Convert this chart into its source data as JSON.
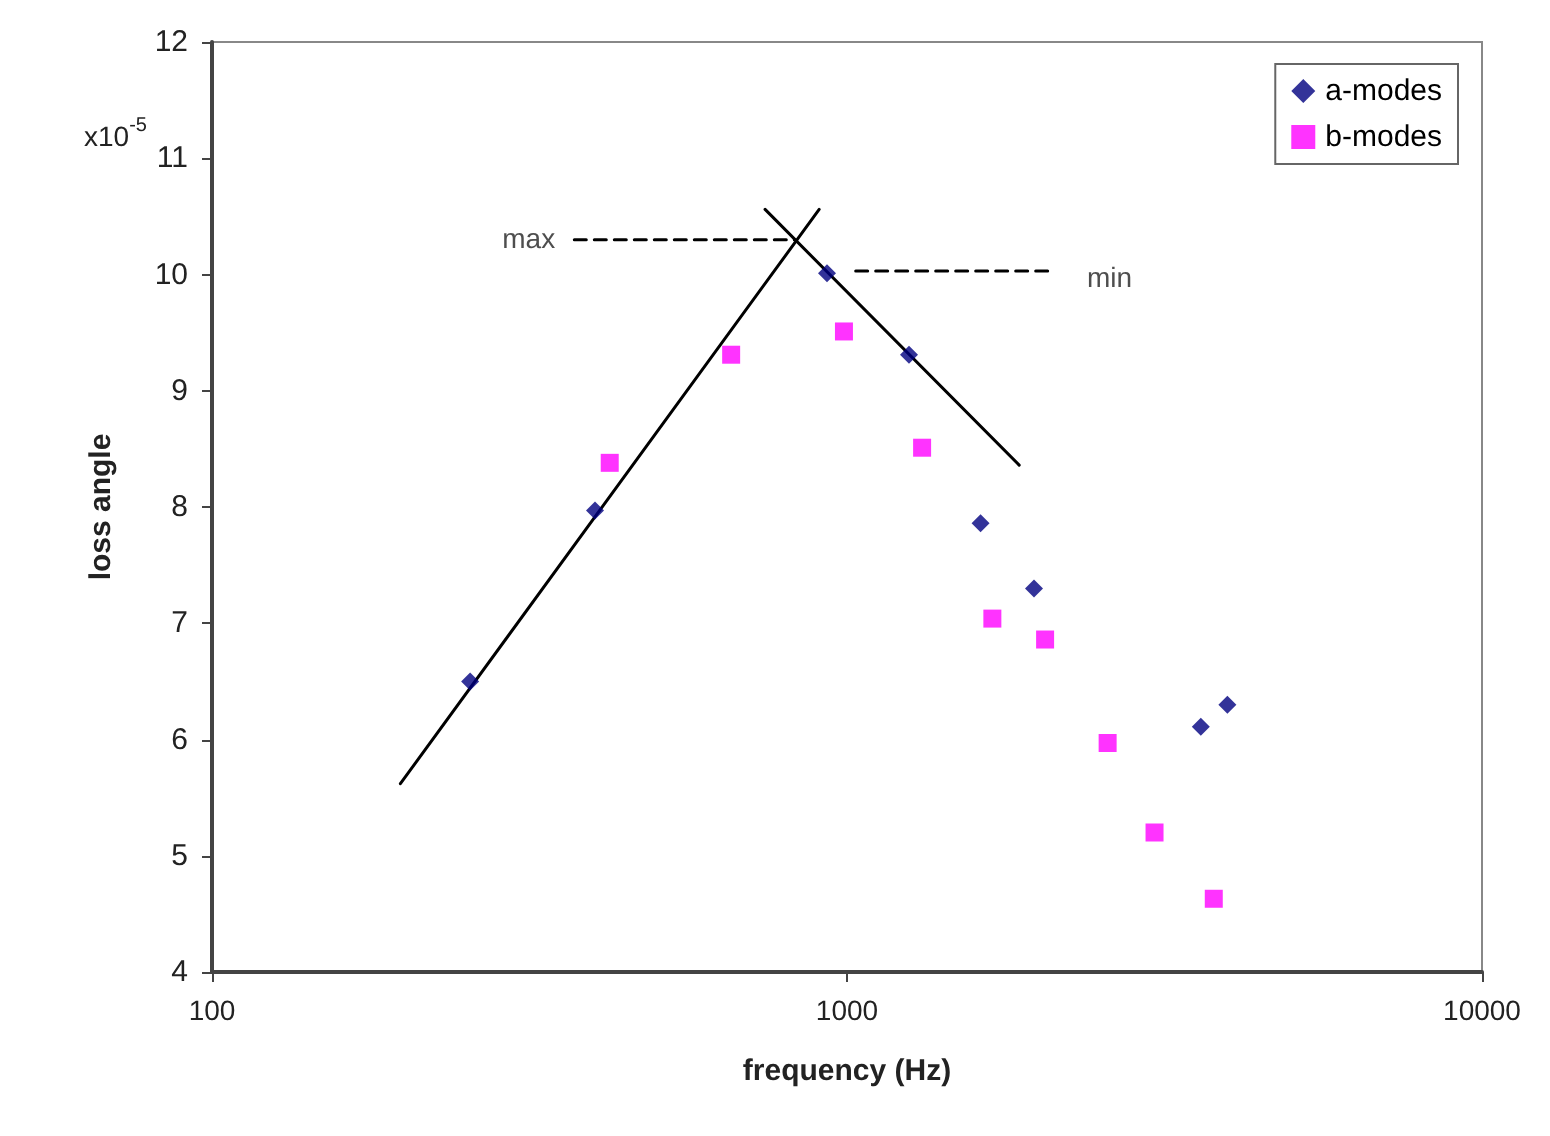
{
  "chart_data": {
    "type": "scatter",
    "xlabel": "frequency (Hz)",
    "ylabel": "loss angle",
    "log": "x",
    "xlim": [
      100,
      10000
    ],
    "xticks": [
      100,
      1000,
      10000
    ],
    "ylim": [
      4,
      12
    ],
    "yticks": [
      4,
      5,
      6,
      7,
      8,
      9,
      10,
      11,
      12
    ],
    "grid": false,
    "legend": "top right",
    "annotations": [
      "x10$^{-5}$",
      {
        "text": "max",
        "x": 372,
        "y": 10.3
      },
      {
        "text": "min",
        "x": 2095,
        "y": 10.03
      }
    ],
    "series": [
      {
        "name": "a-modes",
        "color": "#000080",
        "marker": "diamond",
        "x": [
          255,
          401,
          930,
          1252,
          1623,
          1970,
          3607,
          3972
        ],
        "values": [
          6.5,
          7.97,
          10.01,
          9.31,
          7.86,
          7.3,
          6.11,
          6.3
        ]
      },
      {
        "name": "b-modes",
        "color": "#ff00ff",
        "marker": "square",
        "x": [
          423,
          657,
          989,
          1313,
          1694,
          2051,
          2573,
          3050,
          3781
        ],
        "values": [
          8.38,
          9.31,
          9.51,
          8.51,
          7.04,
          6.86,
          5.97,
          5.2,
          4.63
        ]
      },
      {
        "type": "line",
        "color": "#000000",
        "marker": "none",
        "line_style": "solid",
        "x": [
          198,
          904
        ],
        "values": [
          5.62,
          10.56
        ]
      },
      {
        "type": "line",
        "color": "#000000",
        "marker": "none",
        "line_style": "solid",
        "x": [
          743,
          1867
        ],
        "values": [
          10.56,
          8.36
        ]
      },
      {
        "type": "line",
        "color": "#000000",
        "marker": "none",
        "line_style": "dashed",
        "x": [
          372,
          828
        ],
        "values": [
          10.3,
          10.3
        ]
      },
      {
        "type": "line",
        "color": "#000000",
        "marker": "none",
        "line_style": "dashed",
        "x": [
          1032,
          2095
        ],
        "values": [
          10.03,
          10.03
        ]
      }
    ]
  }
}
